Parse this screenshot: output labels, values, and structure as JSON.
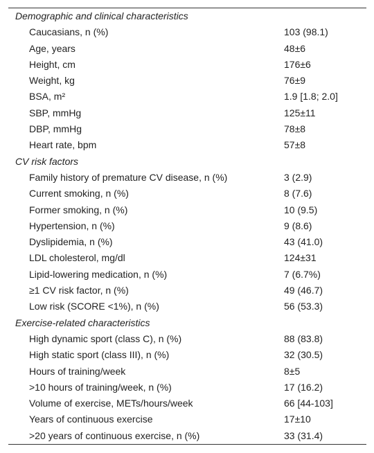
{
  "sections": [
    {
      "title": "Demographic and clinical characteristics",
      "rows": [
        [
          "Caucasians, n (%)",
          "103 (98.1)"
        ],
        [
          "Age, years",
          "48±6"
        ],
        [
          "Height, cm",
          "176±6"
        ],
        [
          "Weight, kg",
          "76±9"
        ],
        [
          "BSA, m²",
          "1.9 [1.8; 2.0]"
        ],
        [
          "SBP, mmHg",
          "125±11"
        ],
        [
          "DBP, mmHg",
          "78±8"
        ],
        [
          "Heart rate, bpm",
          "57±8"
        ]
      ]
    },
    {
      "title": "CV risk factors",
      "rows": [
        [
          "Family history of premature CV disease, n (%)",
          "3 (2.9)"
        ],
        [
          "Current smoking, n (%)",
          "8 (7.6)"
        ],
        [
          "Former smoking, n (%)",
          "10 (9.5)"
        ],
        [
          "Hypertension, n (%)",
          "9 (8.6)"
        ],
        [
          "Dyslipidemia, n (%)",
          "43 (41.0)"
        ],
        [
          "LDL cholesterol, mg/dl",
          "124±31"
        ],
        [
          "Lipid-lowering medication, n (%)",
          "7 (6.7%)"
        ],
        [
          "≥1 CV risk factor, n (%)",
          "49 (46.7)"
        ],
        [
          "Low risk (SCORE <1%), n (%)",
          "56 (53.3)"
        ]
      ]
    },
    {
      "title": "Exercise-related characteristics",
      "rows": [
        [
          "High dynamic sport (class C), n (%)",
          "88 (83.8)"
        ],
        [
          "High static sport (class III), n (%)",
          "32 (30.5)"
        ],
        [
          "Hours of training/week",
          "8±5"
        ],
        [
          ">10 hours of training/week, n (%)",
          "17 (16.2)"
        ],
        [
          "Volume of exercise, METs/hours/week",
          "66 [44-103]"
        ],
        [
          "Years of continuous exercise",
          "17±10"
        ],
        [
          ">20 years of continuous exercise, n (%)",
          "33 (31.4)"
        ]
      ]
    }
  ]
}
